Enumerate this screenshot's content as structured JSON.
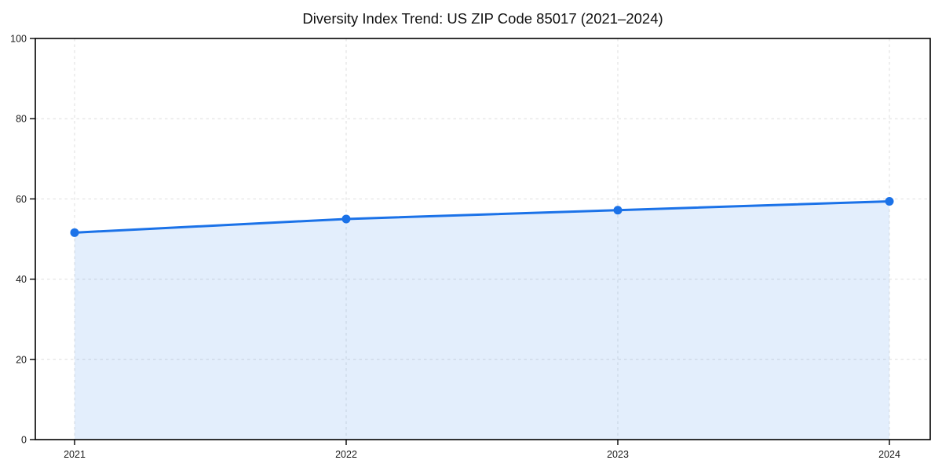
{
  "chart_data": {
    "type": "line",
    "title": "Diversity Index Trend: US ZIP Code 85017 (2021–2024)",
    "categories": [
      "2021",
      "2022",
      "2023",
      "2024"
    ],
    "values": [
      51.6,
      55.0,
      57.2,
      59.4
    ],
    "xlabel": "",
    "ylabel": "",
    "ylim": [
      0,
      100
    ],
    "yticks": [
      0,
      20,
      40,
      60,
      80,
      100
    ],
    "grid": true,
    "grid_style": "dashed",
    "legend_position": "none",
    "area_fill": true,
    "markers": true,
    "colors": {
      "line": "#1B72E8",
      "area_fill_opacity": 0.12,
      "grid": "#DEDEDE",
      "axis": "#000000",
      "text": "#1A1A1A",
      "background": "#FFFFFF"
    }
  }
}
